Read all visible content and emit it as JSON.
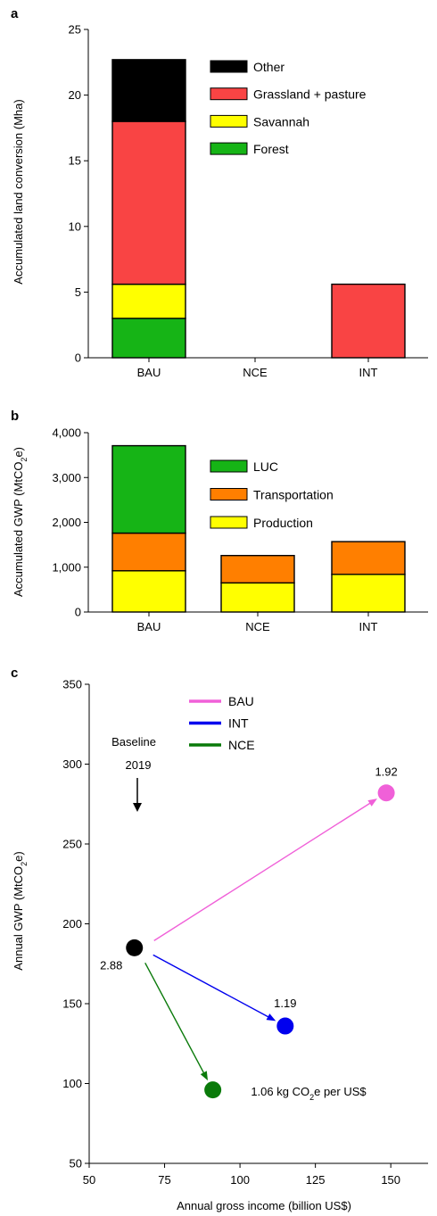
{
  "chart_data": [
    {
      "panel": "a",
      "type": "bar",
      "stacked": true,
      "title": "",
      "xlabel": "",
      "ylabel": "Accumulated land conversion (Mha)",
      "ylim": [
        0,
        25
      ],
      "yticks": [
        "0",
        "5",
        "10",
        "15",
        "20",
        "25"
      ],
      "categories": [
        "BAU",
        "NCE",
        "INT"
      ],
      "legend_position": "top-right",
      "series": [
        {
          "name": "Forest",
          "color": "#16b416",
          "values": [
            3.0,
            0,
            0
          ]
        },
        {
          "name": "Savannah",
          "color": "#ffff00",
          "values": [
            2.6,
            0,
            0
          ]
        },
        {
          "name": "Grassland + pasture",
          "color": "#f94444",
          "values": [
            12.4,
            0,
            5.6
          ]
        },
        {
          "name": "Other",
          "color": "#000000",
          "values": [
            4.7,
            0,
            0
          ]
        }
      ]
    },
    {
      "panel": "b",
      "type": "bar",
      "stacked": true,
      "title": "",
      "xlabel": "",
      "ylabel_parts": [
        "Accumulated GWP (MtCO",
        "2",
        "e)"
      ],
      "ylim": [
        0,
        4000
      ],
      "yticks": [
        "0",
        "1,000",
        "2,000",
        "3,000",
        "4,000"
      ],
      "categories": [
        "BAU",
        "NCE",
        "INT"
      ],
      "legend_position": "top-right",
      "series": [
        {
          "name": "Production",
          "color": "#ffff00",
          "values": [
            920,
            650,
            840
          ]
        },
        {
          "name": "Transportation",
          "color": "#ff7f00",
          "values": [
            840,
            610,
            730
          ]
        },
        {
          "name": "LUC",
          "color": "#16b416",
          "values": [
            1950,
            0,
            0
          ]
        }
      ]
    },
    {
      "panel": "c",
      "type": "scatter",
      "title": "",
      "xlabel": "Annual gross income (billion US$)",
      "ylabel_parts": [
        "Annual GWP (MtCO",
        "2",
        "e)"
      ],
      "xlim": [
        50,
        160
      ],
      "ylim": [
        50,
        350
      ],
      "xticks": [
        "50",
        "75",
        "100",
        "125",
        "150"
      ],
      "yticks": [
        "50",
        "100",
        "150",
        "200",
        "250",
        "300",
        "350"
      ],
      "legend_position": "top-left",
      "points": [
        {
          "name": "Baseline",
          "x": 65,
          "y": 185,
          "color": "#000000",
          "label": "2.88"
        },
        {
          "name": "BAU",
          "x": 148.5,
          "y": 282,
          "color": "#f060d8",
          "label": "1.92"
        },
        {
          "name": "INT",
          "x": 115,
          "y": 136,
          "color": "#0000ee",
          "label": "1.19"
        },
        {
          "name": "NCE",
          "x": 91,
          "y": 96,
          "color": "#0a7a0a",
          "label_parts": [
            "1.06 kg CO",
            "2",
            "e per US$"
          ]
        }
      ],
      "series": [
        {
          "name": "BAU",
          "color": "#f060d8"
        },
        {
          "name": "INT",
          "color": "#0000ee"
        },
        {
          "name": "NCE",
          "color": "#0a7a0a"
        }
      ],
      "annotation": {
        "line1": "Baseline",
        "line2": "2019"
      }
    }
  ]
}
